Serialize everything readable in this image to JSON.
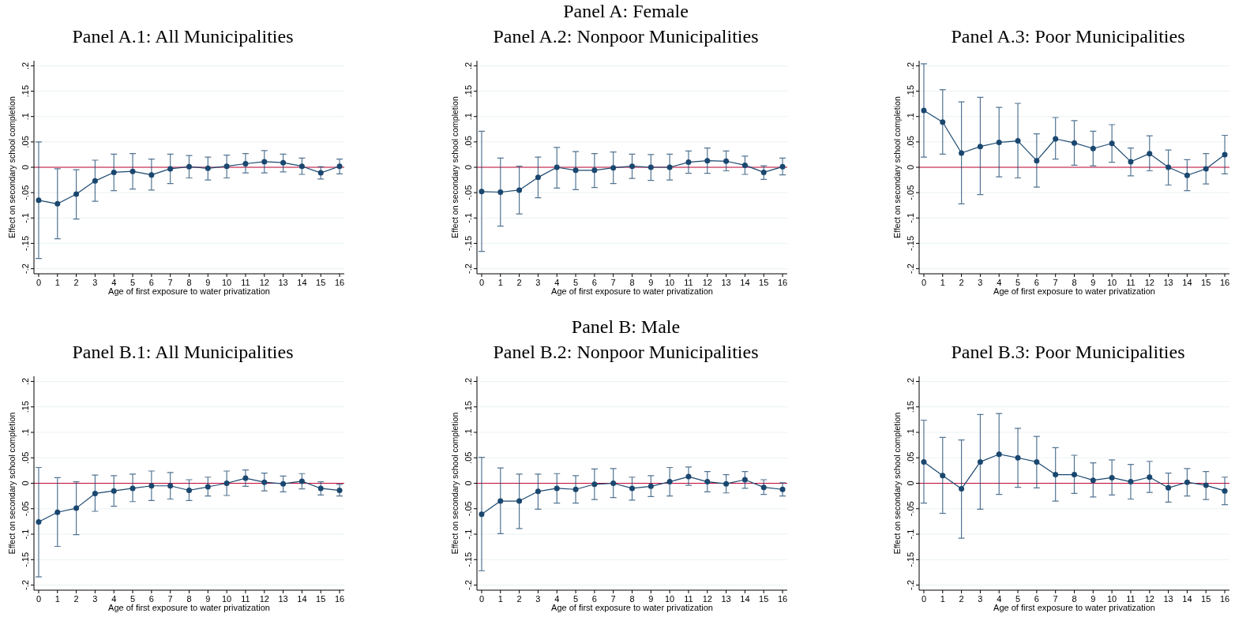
{
  "chart_data": [
    {
      "type": "line",
      "title": "Panel A.1: All Municipalities",
      "xlabel": "Age of first exposure to water privatization",
      "ylabel": "Effect on secondary school completion",
      "x": [
        0,
        1,
        2,
        3,
        4,
        5,
        6,
        7,
        8,
        9,
        10,
        11,
        12,
        13,
        14,
        15,
        16
      ],
      "xlim": [
        -0.25,
        16.25
      ],
      "xticks": [
        0,
        1,
        2,
        3,
        4,
        5,
        6,
        7,
        8,
        9,
        10,
        11,
        12,
        13,
        14,
        15,
        16
      ],
      "ylim": [
        -0.21,
        0.21
      ],
      "yticks": [
        {
          "value": -0.2,
          "label": "-.2"
        },
        {
          "value": -0.15,
          "label": "-.15"
        },
        {
          "value": -0.1,
          "label": "-.1"
        },
        {
          "value": -0.05,
          "label": "-.05"
        },
        {
          "value": 0,
          "label": "0"
        },
        {
          "value": 0.05,
          "label": ".05"
        },
        {
          "value": 0.1,
          "label": ".1"
        },
        {
          "value": 0.15,
          "label": ".15"
        },
        {
          "value": 0.2,
          "label": ".2"
        }
      ],
      "grid": "y",
      "marker": "circle",
      "ref_lines": [
        {
          "axis": "y",
          "value": 0,
          "color": "#c10534"
        }
      ],
      "series": [
        {
          "color": "#1a476f",
          "values": [
            -0.065,
            -0.072,
            -0.053,
            -0.027,
            -0.01,
            -0.008,
            -0.015,
            -0.003,
            0.001,
            -0.002,
            0.002,
            0.007,
            0.011,
            0.009,
            0.002,
            -0.011,
            0.002
          ],
          "errors": [
            [
              -0.18,
              0.05
            ],
            [
              -0.141,
              -0.003
            ],
            [
              -0.102,
              -0.005
            ],
            [
              -0.067,
              0.014
            ],
            [
              -0.046,
              0.026
            ],
            [
              -0.043,
              0.027
            ],
            [
              -0.045,
              0.016
            ],
            [
              -0.032,
              0.026
            ],
            [
              -0.021,
              0.023
            ],
            [
              -0.025,
              0.02
            ],
            [
              -0.021,
              0.024
            ],
            [
              -0.011,
              0.027
            ],
            [
              -0.011,
              0.033
            ],
            [
              -0.009,
              0.026
            ],
            [
              -0.014,
              0.018
            ],
            [
              -0.023,
              0.001
            ],
            [
              -0.013,
              0.016
            ]
          ]
        }
      ]
    },
    {
      "type": "line",
      "title": "Panel A.2: Nonpoor Municipalities",
      "subtitle": "Panel A: Female",
      "xlabel": "Age of first exposure to water privatization",
      "ylabel": "Effect on secondary school completion",
      "x": [
        0,
        1,
        2,
        3,
        4,
        5,
        6,
        7,
        8,
        9,
        10,
        11,
        12,
        13,
        14,
        15,
        16
      ],
      "xlim": [
        -0.25,
        16.25
      ],
      "xticks": [
        0,
        1,
        2,
        3,
        4,
        5,
        6,
        7,
        8,
        9,
        10,
        11,
        12,
        13,
        14,
        15,
        16
      ],
      "ylim": [
        -0.21,
        0.21
      ],
      "yticks": [
        {
          "value": -0.2,
          "label": "-.2"
        },
        {
          "value": -0.15,
          "label": "-.15"
        },
        {
          "value": -0.1,
          "label": "-.1"
        },
        {
          "value": -0.05,
          "label": "-.05"
        },
        {
          "value": 0,
          "label": "0"
        },
        {
          "value": 0.05,
          "label": ".05"
        },
        {
          "value": 0.1,
          "label": ".1"
        },
        {
          "value": 0.15,
          "label": ".15"
        },
        {
          "value": 0.2,
          "label": ".2"
        }
      ],
      "grid": "y",
      "marker": "circle",
      "ref_lines": [
        {
          "axis": "y",
          "value": 0,
          "color": "#c10534"
        }
      ],
      "series": [
        {
          "color": "#1a476f",
          "values": [
            -0.048,
            -0.049,
            -0.045,
            -0.02,
            0.0,
            -0.006,
            -0.006,
            -0.001,
            0.002,
            0.0,
            0.0,
            0.01,
            0.013,
            0.012,
            0.004,
            -0.01,
            0.001
          ],
          "errors": [
            [
              -0.166,
              0.071
            ],
            [
              -0.116,
              0.018
            ],
            [
              -0.092,
              0.002
            ],
            [
              -0.06,
              0.02
            ],
            [
              -0.041,
              0.039
            ],
            [
              -0.044,
              0.031
            ],
            [
              -0.04,
              0.027
            ],
            [
              -0.032,
              0.03
            ],
            [
              -0.022,
              0.026
            ],
            [
              -0.026,
              0.025
            ],
            [
              -0.025,
              0.026
            ],
            [
              -0.012,
              0.032
            ],
            [
              -0.012,
              0.038
            ],
            [
              -0.007,
              0.032
            ],
            [
              -0.014,
              0.022
            ],
            [
              -0.024,
              0.003
            ],
            [
              -0.015,
              0.018
            ]
          ]
        }
      ]
    },
    {
      "type": "line",
      "title": "Panel A.3: Poor Municipalities",
      "xlabel": "Age of first exposure to water privatization",
      "ylabel": "Effect on secondary school completion",
      "x": [
        0,
        1,
        2,
        3,
        4,
        5,
        6,
        7,
        8,
        9,
        10,
        11,
        12,
        13,
        14,
        15,
        16
      ],
      "xlim": [
        -0.25,
        16.25
      ],
      "xticks": [
        0,
        1,
        2,
        3,
        4,
        5,
        6,
        7,
        8,
        9,
        10,
        11,
        12,
        13,
        14,
        15,
        16
      ],
      "ylim": [
        -0.21,
        0.21
      ],
      "yticks": [
        {
          "value": -0.2,
          "label": "-.2"
        },
        {
          "value": -0.15,
          "label": "-.15"
        },
        {
          "value": -0.1,
          "label": "-.1"
        },
        {
          "value": -0.05,
          "label": "-.05"
        },
        {
          "value": 0,
          "label": "0"
        },
        {
          "value": 0.05,
          "label": ".05"
        },
        {
          "value": 0.1,
          "label": ".1"
        },
        {
          "value": 0.15,
          "label": ".15"
        },
        {
          "value": 0.2,
          "label": ".2"
        }
      ],
      "grid": "y",
      "marker": "circle",
      "ref_lines": [
        {
          "axis": "y",
          "value": 0,
          "color": "#c10534"
        }
      ],
      "series": [
        {
          "color": "#1a476f",
          "values": [
            0.112,
            0.089,
            0.028,
            0.041,
            0.049,
            0.052,
            0.013,
            0.056,
            0.048,
            0.037,
            0.047,
            0.011,
            0.027,
            0.0,
            -0.016,
            -0.003,
            0.025
          ],
          "errors": [
            [
              0.02,
              0.204
            ],
            [
              0.026,
              0.153
            ],
            [
              -0.072,
              0.129
            ],
            [
              -0.054,
              0.138
            ],
            [
              -0.019,
              0.118
            ],
            [
              -0.021,
              0.126
            ],
            [
              -0.039,
              0.066
            ],
            [
              0.016,
              0.098
            ],
            [
              0.004,
              0.092
            ],
            [
              0.003,
              0.071
            ],
            [
              0.01,
              0.084
            ],
            [
              -0.017,
              0.038
            ],
            [
              -0.007,
              0.062
            ],
            [
              -0.035,
              0.034
            ],
            [
              -0.046,
              0.015
            ],
            [
              -0.033,
              0.027
            ],
            [
              -0.013,
              0.063
            ]
          ]
        }
      ]
    },
    {
      "type": "line",
      "title": "Panel B.1: All Municipalities",
      "xlabel": "Age of first exposure to water privatization",
      "ylabel": "Effect on secondary school completion",
      "x": [
        0,
        1,
        2,
        3,
        4,
        5,
        6,
        7,
        8,
        9,
        10,
        11,
        12,
        13,
        14,
        15,
        16
      ],
      "xlim": [
        -0.25,
        16.25
      ],
      "xticks": [
        0,
        1,
        2,
        3,
        4,
        5,
        6,
        7,
        8,
        9,
        10,
        11,
        12,
        13,
        14,
        15,
        16
      ],
      "ylim": [
        -0.21,
        0.21
      ],
      "yticks": [
        {
          "value": -0.2,
          "label": "-.2"
        },
        {
          "value": -0.15,
          "label": "-.15"
        },
        {
          "value": -0.1,
          "label": "-.1"
        },
        {
          "value": -0.05,
          "label": "-.05"
        },
        {
          "value": 0,
          "label": "0"
        },
        {
          "value": 0.05,
          "label": ".05"
        },
        {
          "value": 0.1,
          "label": ".1"
        },
        {
          "value": 0.15,
          "label": ".15"
        },
        {
          "value": 0.2,
          "label": ".2"
        }
      ],
      "grid": "y",
      "marker": "circle",
      "ref_lines": [
        {
          "axis": "y",
          "value": 0,
          "color": "#c10534"
        }
      ],
      "series": [
        {
          "color": "#1a476f",
          "values": [
            -0.076,
            -0.057,
            -0.049,
            -0.02,
            -0.015,
            -0.01,
            -0.005,
            -0.005,
            -0.014,
            -0.007,
            0.0,
            0.01,
            0.002,
            -0.001,
            0.004,
            -0.01,
            -0.014
          ],
          "errors": [
            [
              -0.184,
              0.031
            ],
            [
              -0.124,
              0.011
            ],
            [
              -0.101,
              0.003
            ],
            [
              -0.055,
              0.016
            ],
            [
              -0.045,
              0.015
            ],
            [
              -0.036,
              0.018
            ],
            [
              -0.034,
              0.024
            ],
            [
              -0.031,
              0.021
            ],
            [
              -0.034,
              0.007
            ],
            [
              -0.025,
              0.012
            ],
            [
              -0.024,
              0.024
            ],
            [
              -0.006,
              0.026
            ],
            [
              -0.015,
              0.02
            ],
            [
              -0.017,
              0.014
            ],
            [
              -0.011,
              0.019
            ],
            [
              -0.023,
              0.003
            ],
            [
              -0.025,
              -0.002
            ]
          ]
        }
      ]
    },
    {
      "type": "line",
      "title": "Panel B.2: Nonpoor Municipalities",
      "subtitle": "Panel B: Male",
      "xlabel": "Age of first exposure to water privatization",
      "ylabel": "Effect on secondary school completion",
      "x": [
        0,
        1,
        2,
        3,
        4,
        5,
        6,
        7,
        8,
        9,
        10,
        11,
        12,
        13,
        14,
        15,
        16
      ],
      "xlim": [
        -0.25,
        16.25
      ],
      "xticks": [
        0,
        1,
        2,
        3,
        4,
        5,
        6,
        7,
        8,
        9,
        10,
        11,
        12,
        13,
        14,
        15,
        16
      ],
      "ylim": [
        -0.21,
        0.21
      ],
      "yticks": [
        {
          "value": -0.2,
          "label": "-.2"
        },
        {
          "value": -0.15,
          "label": "-.15"
        },
        {
          "value": -0.1,
          "label": "-.1"
        },
        {
          "value": -0.05,
          "label": "-.05"
        },
        {
          "value": 0,
          "label": "0"
        },
        {
          "value": 0.05,
          "label": ".05"
        },
        {
          "value": 0.1,
          "label": ".1"
        },
        {
          "value": 0.15,
          "label": ".15"
        },
        {
          "value": 0.2,
          "label": ".2"
        }
      ],
      "grid": "y",
      "marker": "circle",
      "ref_lines": [
        {
          "axis": "y",
          "value": 0,
          "color": "#c10534"
        }
      ],
      "series": [
        {
          "color": "#1a476f",
          "values": [
            -0.061,
            -0.035,
            -0.035,
            -0.016,
            -0.01,
            -0.012,
            -0.002,
            0.0,
            -0.01,
            -0.006,
            0.003,
            0.013,
            0.003,
            -0.001,
            0.007,
            -0.008,
            -0.012
          ],
          "errors": [
            [
              -0.172,
              0.051
            ],
            [
              -0.099,
              0.03
            ],
            [
              -0.089,
              0.018
            ],
            [
              -0.051,
              0.018
            ],
            [
              -0.039,
              0.019
            ],
            [
              -0.039,
              0.015
            ],
            [
              -0.032,
              0.028
            ],
            [
              -0.028,
              0.029
            ],
            [
              -0.033,
              0.012
            ],
            [
              -0.026,
              0.015
            ],
            [
              -0.025,
              0.031
            ],
            [
              -0.004,
              0.032
            ],
            [
              -0.017,
              0.023
            ],
            [
              -0.019,
              0.017
            ],
            [
              -0.01,
              0.023
            ],
            [
              -0.022,
              0.007
            ],
            [
              -0.025,
              0.001
            ]
          ]
        }
      ]
    },
    {
      "type": "line",
      "title": "Panel B.3: Poor Municipalities",
      "xlabel": "Age of first exposure to water privatization",
      "ylabel": "Effect on secondary school completion",
      "x": [
        0,
        1,
        2,
        3,
        4,
        5,
        6,
        7,
        8,
        9,
        10,
        11,
        12,
        13,
        14,
        15,
        16
      ],
      "xlim": [
        -0.25,
        16.25
      ],
      "xticks": [
        0,
        1,
        2,
        3,
        4,
        5,
        6,
        7,
        8,
        9,
        10,
        11,
        12,
        13,
        14,
        15,
        16
      ],
      "ylim": [
        -0.21,
        0.21
      ],
      "yticks": [
        {
          "value": -0.2,
          "label": "-.2"
        },
        {
          "value": -0.15,
          "label": "-.15"
        },
        {
          "value": -0.1,
          "label": "-.1"
        },
        {
          "value": -0.05,
          "label": "-.05"
        },
        {
          "value": 0,
          "label": "0"
        },
        {
          "value": 0.05,
          "label": ".05"
        },
        {
          "value": 0.1,
          "label": ".1"
        },
        {
          "value": 0.15,
          "label": ".15"
        },
        {
          "value": 0.2,
          "label": ".2"
        }
      ],
      "grid": "y",
      "marker": "circle",
      "ref_lines": [
        {
          "axis": "y",
          "value": 0,
          "color": "#c10534"
        }
      ],
      "series": [
        {
          "color": "#1a476f",
          "values": [
            0.042,
            0.015,
            -0.011,
            0.042,
            0.057,
            0.05,
            0.042,
            0.017,
            0.017,
            0.006,
            0.011,
            0.003,
            0.012,
            -0.009,
            0.002,
            -0.004,
            -0.015
          ],
          "errors": [
            [
              -0.039,
              0.124
            ],
            [
              -0.059,
              0.09
            ],
            [
              -0.108,
              0.085
            ],
            [
              -0.051,
              0.135
            ],
            [
              -0.022,
              0.137
            ],
            [
              -0.008,
              0.108
            ],
            [
              -0.009,
              0.092
            ],
            [
              -0.035,
              0.07
            ],
            [
              -0.02,
              0.055
            ],
            [
              -0.027,
              0.04
            ],
            [
              -0.023,
              0.046
            ],
            [
              -0.031,
              0.037
            ],
            [
              -0.018,
              0.043
            ],
            [
              -0.037,
              0.02
            ],
            [
              -0.025,
              0.029
            ],
            [
              -0.032,
              0.023
            ],
            [
              -0.042,
              0.012
            ]
          ]
        }
      ]
    }
  ]
}
